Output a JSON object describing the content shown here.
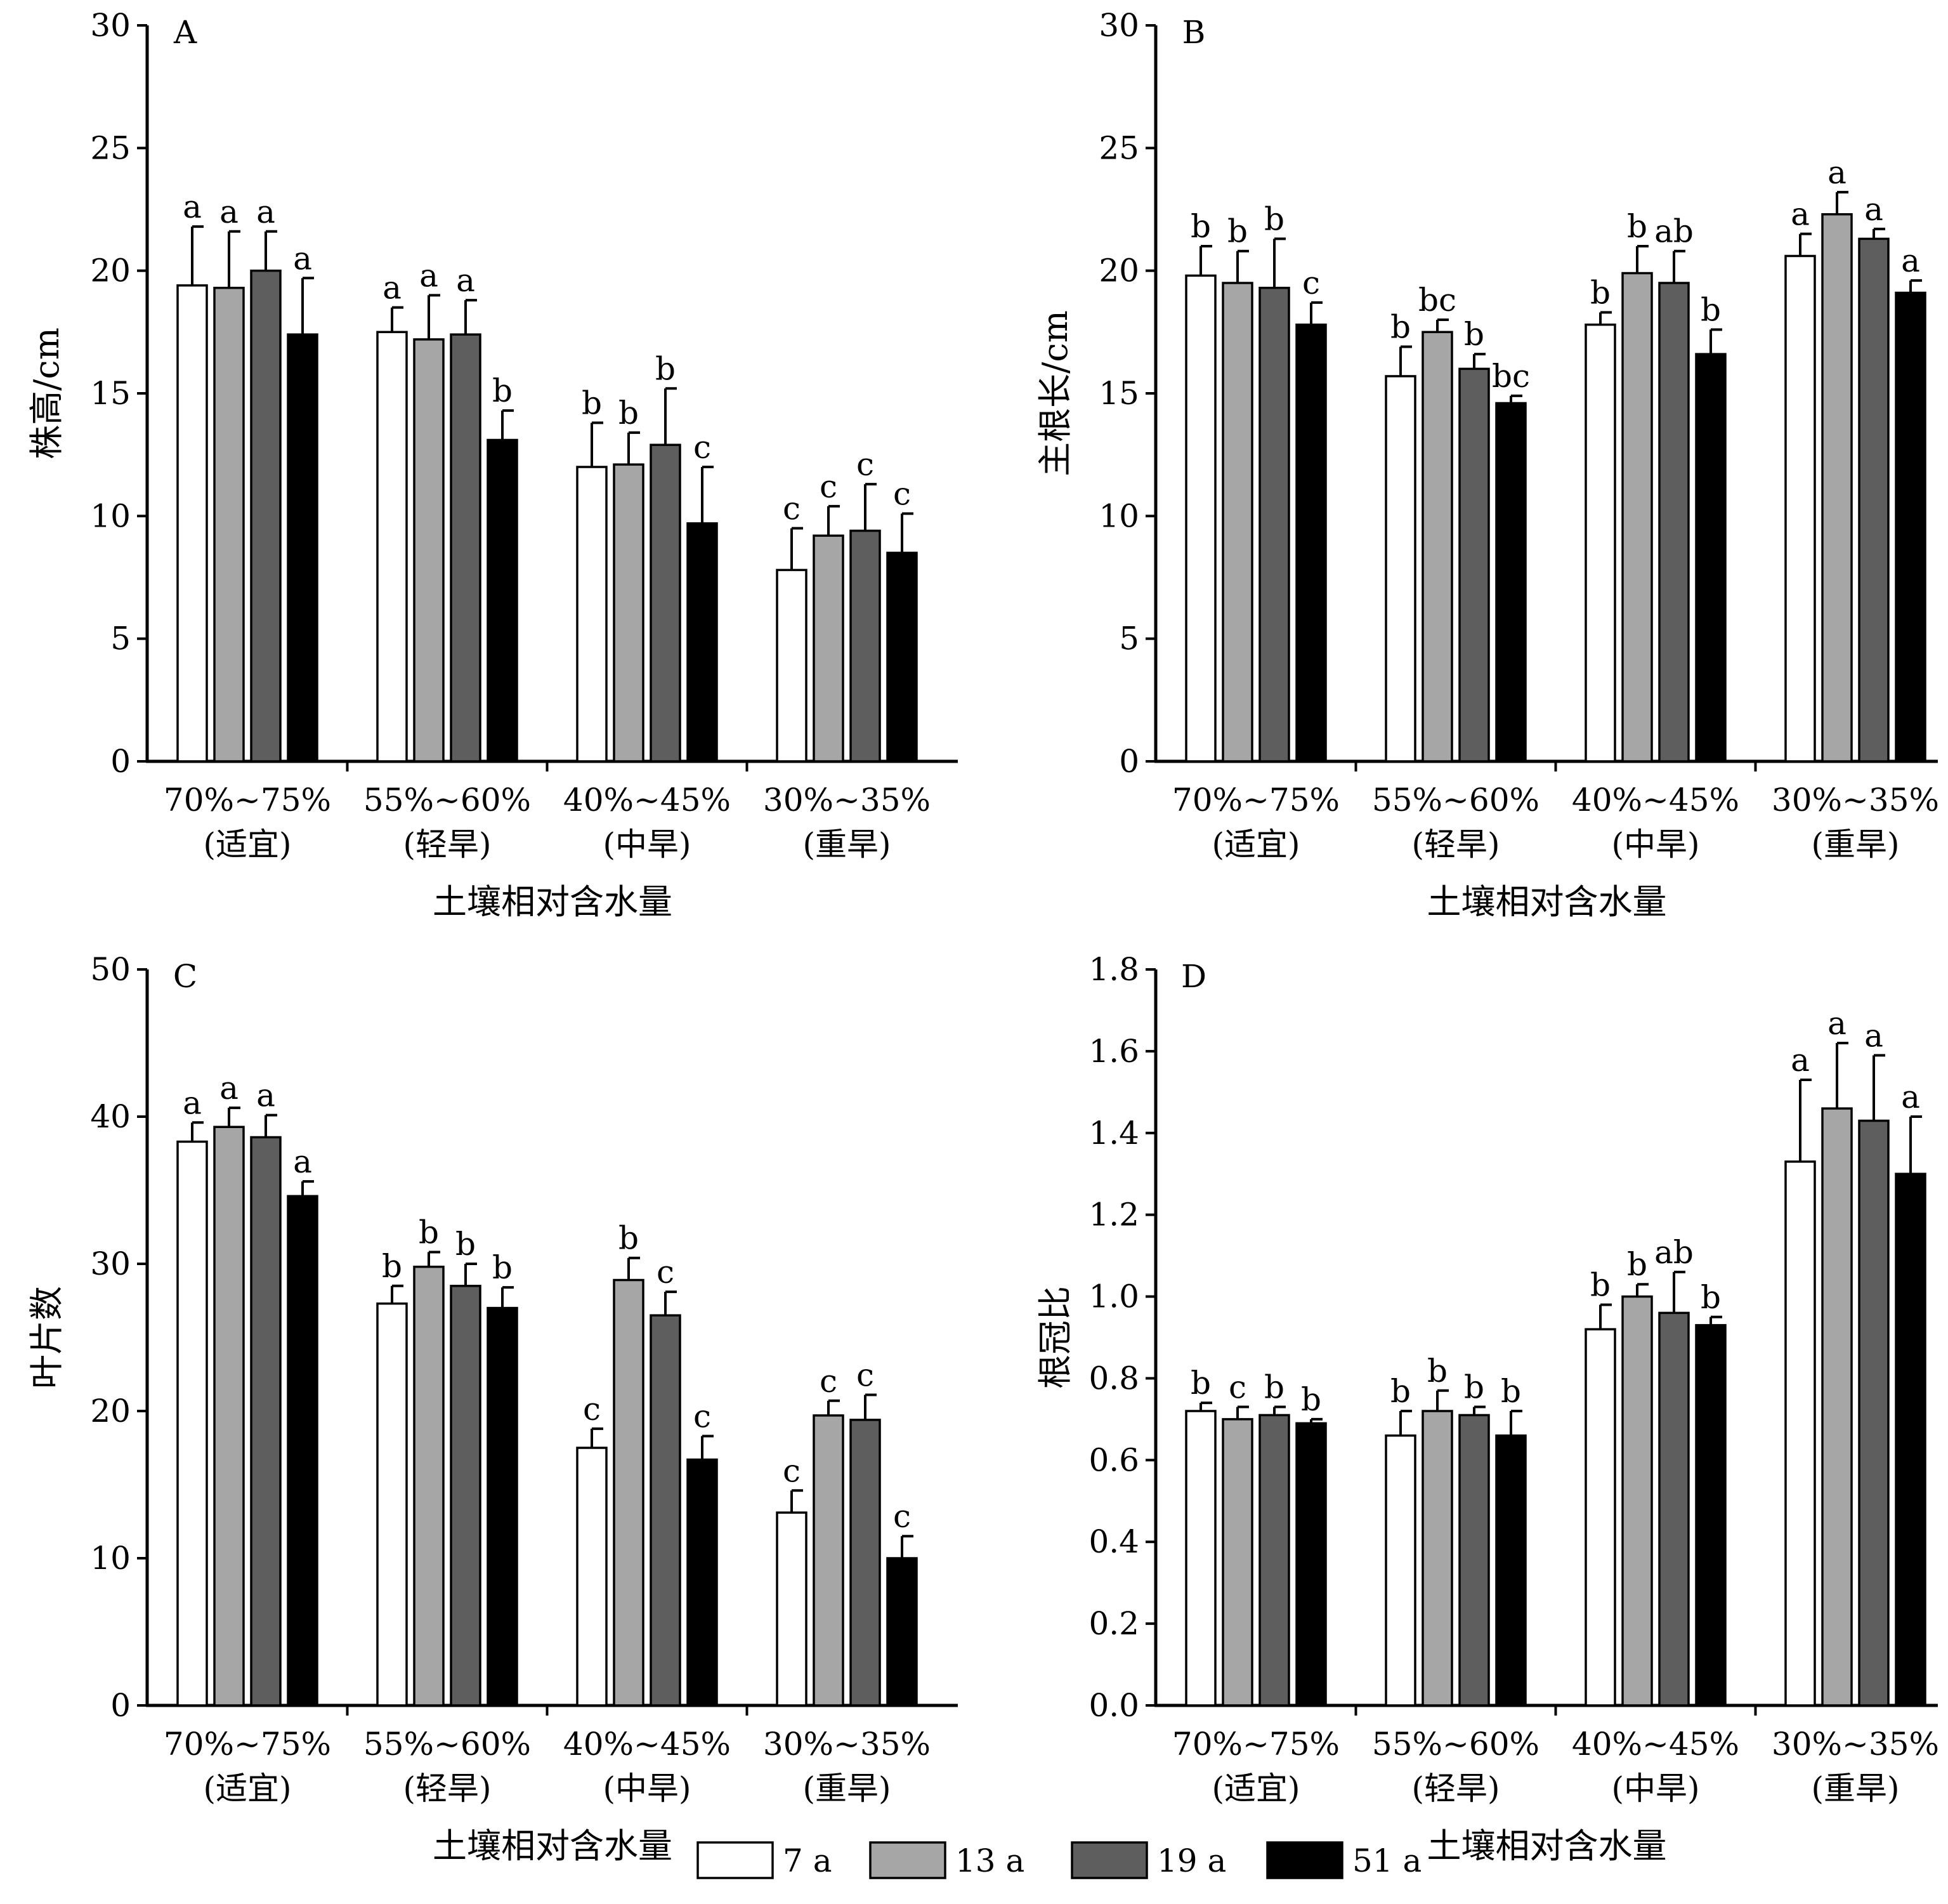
{
  "series_colors": [
    "#ffffff",
    "#a6a6a6",
    "#5e5e5e",
    "#000000"
  ],
  "legend": {
    "items": [
      {
        "label": "7 a",
        "color": "#ffffff"
      },
      {
        "label": "13 a",
        "color": "#a6a6a6"
      },
      {
        "label": "19 a",
        "color": "#5e5e5e"
      },
      {
        "label": "51 a",
        "color": "#000000"
      }
    ]
  },
  "chart_data": [
    {
      "panel": "A",
      "type": "bar",
      "ylabel": "株高/cm",
      "xlabel": "土壤相对含水量",
      "categories": [
        "70%~75%",
        "55%~60%",
        "40%~45%",
        "30%~35%"
      ],
      "category_sublabels": [
        "(适宜)",
        "(轻旱)",
        "(中旱)",
        "(重旱)"
      ],
      "ylim": [
        0,
        30
      ],
      "yticks": [
        "0",
        "5",
        "10",
        "15",
        "20",
        "25",
        "30"
      ],
      "series": [
        {
          "name": "7 a",
          "values": [
            19.4,
            17.5,
            12.0,
            7.8
          ],
          "errors": [
            2.4,
            1.0,
            1.8,
            1.7
          ],
          "letters": [
            "a",
            "a",
            "b",
            "c"
          ]
        },
        {
          "name": "13 a",
          "values": [
            19.3,
            17.2,
            12.1,
            9.2
          ],
          "errors": [
            2.3,
            1.8,
            1.3,
            1.2
          ],
          "letters": [
            "a",
            "a",
            "b",
            "c"
          ]
        },
        {
          "name": "19 a",
          "values": [
            20.0,
            17.4,
            12.9,
            9.4
          ],
          "errors": [
            1.6,
            1.4,
            2.3,
            1.9
          ],
          "letters": [
            "a",
            "a",
            "b",
            "c"
          ]
        },
        {
          "name": "51 a",
          "values": [
            17.4,
            13.1,
            9.7,
            8.5
          ],
          "errors": [
            2.3,
            1.2,
            2.3,
            1.6
          ],
          "letters": [
            "a",
            "b",
            "c",
            "c"
          ]
        }
      ]
    },
    {
      "panel": "B",
      "type": "bar",
      "ylabel": "主根长/cm",
      "xlabel": "土壤相对含水量",
      "categories": [
        "70%~75%",
        "55%~60%",
        "40%~45%",
        "30%~35%"
      ],
      "category_sublabels": [
        "(适宜)",
        "(轻旱)",
        "(中旱)",
        "(重旱)"
      ],
      "ylim": [
        0,
        30
      ],
      "yticks": [
        "0",
        "5",
        "10",
        "15",
        "20",
        "25",
        "30"
      ],
      "series": [
        {
          "name": "7 a",
          "values": [
            19.8,
            15.7,
            17.8,
            20.6
          ],
          "errors": [
            1.2,
            1.2,
            0.5,
            0.9
          ],
          "letters": [
            "b",
            "b",
            "b",
            "a"
          ]
        },
        {
          "name": "13 a",
          "values": [
            19.5,
            17.5,
            19.9,
            22.3
          ],
          "errors": [
            1.3,
            0.5,
            1.1,
            0.9
          ],
          "letters": [
            "b",
            "bc",
            "b",
            "a"
          ]
        },
        {
          "name": "19 a",
          "values": [
            19.3,
            16.0,
            19.5,
            21.3
          ],
          "errors": [
            2.0,
            0.6,
            1.3,
            0.4
          ],
          "letters": [
            "b",
            "b",
            "ab",
            "a"
          ]
        },
        {
          "name": "51 a",
          "values": [
            17.8,
            14.6,
            16.6,
            19.1
          ],
          "errors": [
            0.9,
            0.3,
            1.0,
            0.5
          ],
          "letters": [
            "c",
            "bc",
            "b",
            "a"
          ]
        }
      ]
    },
    {
      "panel": "C",
      "type": "bar",
      "ylabel": "叶片数",
      "xlabel": "土壤相对含水量",
      "categories": [
        "70%~75%",
        "55%~60%",
        "40%~45%",
        "30%~35%"
      ],
      "category_sublabels": [
        "(适宜)",
        "(轻旱)",
        "(中旱)",
        "(重旱)"
      ],
      "ylim": [
        0,
        50
      ],
      "yticks": [
        "0",
        "10",
        "20",
        "30",
        "40",
        "50"
      ],
      "series": [
        {
          "name": "7 a",
          "values": [
            38.3,
            27.3,
            17.5,
            13.1
          ],
          "errors": [
            1.3,
            1.2,
            1.3,
            1.5
          ],
          "letters": [
            "a",
            "b",
            "c",
            "c"
          ]
        },
        {
          "name": "13 a",
          "values": [
            39.3,
            29.8,
            28.9,
            19.7
          ],
          "errors": [
            1.3,
            1.0,
            1.5,
            1.0
          ],
          "letters": [
            "a",
            "b",
            "b",
            "c"
          ]
        },
        {
          "name": "19 a",
          "values": [
            38.6,
            28.5,
            26.5,
            19.4
          ],
          "errors": [
            1.5,
            1.5,
            1.6,
            1.7
          ],
          "letters": [
            "a",
            "b",
            "c",
            "c"
          ]
        },
        {
          "name": "51 a",
          "values": [
            34.6,
            27.0,
            16.7,
            10.0
          ],
          "errors": [
            1.0,
            1.4,
            1.6,
            1.5
          ],
          "letters": [
            "a",
            "b",
            "c",
            "c"
          ]
        }
      ]
    },
    {
      "panel": "D",
      "type": "bar",
      "ylabel": "根冠比",
      "xlabel": "土壤相对含水量",
      "categories": [
        "70%~75%",
        "55%~60%",
        "40%~45%",
        "30%~35%"
      ],
      "category_sublabels": [
        "(适宜)",
        "(轻旱)",
        "(中旱)",
        "(重旱)"
      ],
      "ylim": [
        0,
        1.8
      ],
      "yticks": [
        "0.0",
        "0.2",
        "0.4",
        "0.6",
        "0.8",
        "1.0",
        "1.2",
        "1.4",
        "1.6",
        "1.8"
      ],
      "series": [
        {
          "name": "7 a",
          "values": [
            0.72,
            0.66,
            0.92,
            1.33
          ],
          "errors": [
            0.02,
            0.06,
            0.06,
            0.2
          ],
          "letters": [
            "b",
            "b",
            "b",
            "a"
          ]
        },
        {
          "name": "13 a",
          "values": [
            0.7,
            0.72,
            1.0,
            1.46
          ],
          "errors": [
            0.03,
            0.05,
            0.03,
            0.16
          ],
          "letters": [
            "c",
            "b",
            "b",
            "a"
          ]
        },
        {
          "name": "19 a",
          "values": [
            0.71,
            0.71,
            0.96,
            1.43
          ],
          "errors": [
            0.02,
            0.02,
            0.1,
            0.16
          ],
          "letters": [
            "b",
            "b",
            "ab",
            "a"
          ]
        },
        {
          "name": "51 a",
          "values": [
            0.69,
            0.66,
            0.93,
            1.3
          ],
          "errors": [
            0.01,
            0.06,
            0.02,
            0.14
          ],
          "letters": [
            "b",
            "b",
            "b",
            "a"
          ]
        }
      ]
    }
  ]
}
